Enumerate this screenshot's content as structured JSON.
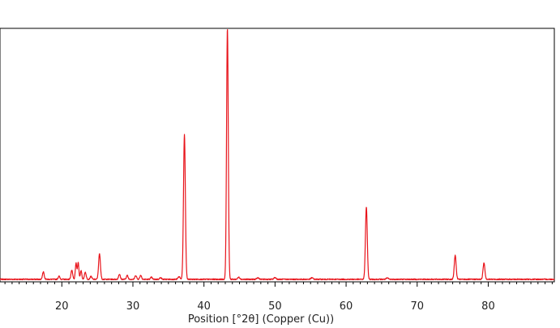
{
  "chart_data": {
    "type": "line",
    "title": "",
    "xlabel": "Position [°2θ] (Copper (Cu))",
    "ylabel": "",
    "xlim": [
      11.3,
      89.3
    ],
    "ylim": [
      0,
      1.0
    ],
    "x_ticks": [
      20,
      30,
      40,
      50,
      60,
      70,
      80
    ],
    "x_tick_labels": [
      "20",
      "30",
      "40",
      "50",
      "60",
      "70",
      "80"
    ],
    "grid": false,
    "legend": "none",
    "colors": {
      "series": "#e8141b",
      "axis": "#000000",
      "background": "#ffffff"
    },
    "series": [
      {
        "name": "",
        "baseline": 0.01,
        "peaks": [
          {
            "x": 17.4,
            "y": 0.03,
            "w": 0.12
          },
          {
            "x": 19.6,
            "y": 0.012,
            "w": 0.12
          },
          {
            "x": 21.4,
            "y": 0.035,
            "w": 0.12
          },
          {
            "x": 22.0,
            "y": 0.063,
            "w": 0.1
          },
          {
            "x": 22.3,
            "y": 0.066,
            "w": 0.1
          },
          {
            "x": 22.7,
            "y": 0.035,
            "w": 0.1
          },
          {
            "x": 23.3,
            "y": 0.028,
            "w": 0.12
          },
          {
            "x": 24.1,
            "y": 0.012,
            "w": 0.12
          },
          {
            "x": 25.3,
            "y": 0.1,
            "w": 0.13
          },
          {
            "x": 28.1,
            "y": 0.02,
            "w": 0.12
          },
          {
            "x": 29.2,
            "y": 0.015,
            "w": 0.12
          },
          {
            "x": 30.4,
            "y": 0.015,
            "w": 0.12
          },
          {
            "x": 31.1,
            "y": 0.016,
            "w": 0.12
          },
          {
            "x": 32.6,
            "y": 0.008,
            "w": 0.12
          },
          {
            "x": 33.9,
            "y": 0.007,
            "w": 0.12
          },
          {
            "x": 36.5,
            "y": 0.01,
            "w": 0.15
          },
          {
            "x": 37.25,
            "y": 0.57,
            "w": 0.13
          },
          {
            "x": 43.3,
            "y": 0.99,
            "w": 0.12
          },
          {
            "x": 44.9,
            "y": 0.008,
            "w": 0.15
          },
          {
            "x": 47.6,
            "y": 0.006,
            "w": 0.15
          },
          {
            "x": 50.0,
            "y": 0.007,
            "w": 0.15
          },
          {
            "x": 55.2,
            "y": 0.006,
            "w": 0.15
          },
          {
            "x": 62.85,
            "y": 0.285,
            "w": 0.13
          },
          {
            "x": 65.8,
            "y": 0.005,
            "w": 0.15
          },
          {
            "x": 75.35,
            "y": 0.095,
            "w": 0.13
          },
          {
            "x": 79.4,
            "y": 0.065,
            "w": 0.13
          }
        ]
      }
    ]
  }
}
